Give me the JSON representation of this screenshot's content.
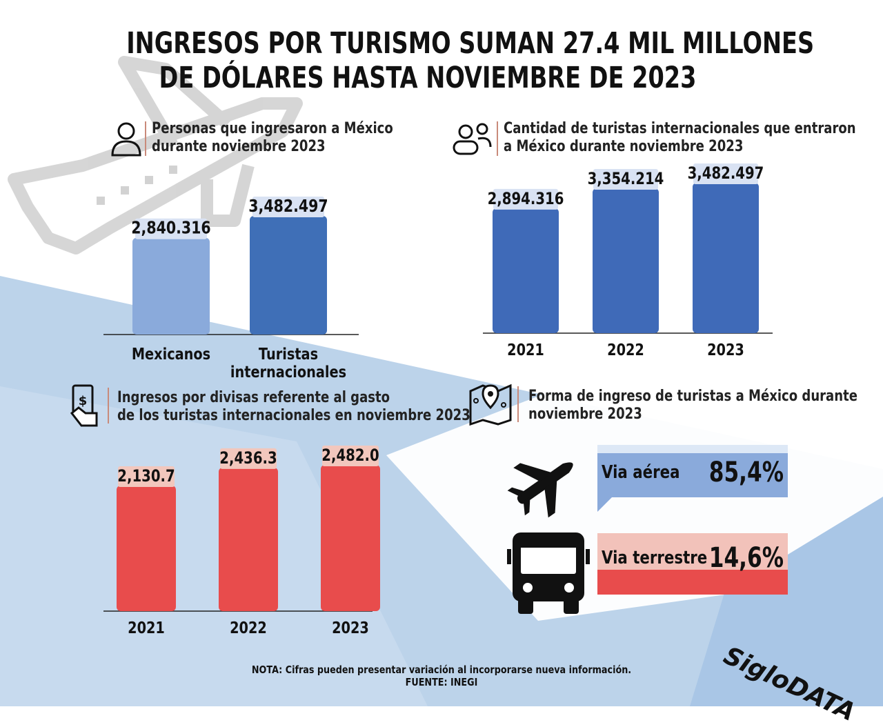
{
  "title": {
    "line1": "INGRESOS POR TURISMO SUMAN 27.4 MIL MILLONES",
    "line2": "DE DÓLARES HASTA NOVIEMBRE DE 2023"
  },
  "chart_data": [
    {
      "type": "bar",
      "title": "Personas que ingresaron a México durante noviembre 2023",
      "title_lines": [
        "Personas que ingresaron a México",
        "durante noviembre 2023"
      ],
      "categories": [
        "Mexicanos",
        "Turistas internacionales"
      ],
      "category_lines": [
        [
          "Mexicanos"
        ],
        [
          "Turistas",
          "internacionales"
        ]
      ],
      "values": [
        2840316,
        3482497
      ],
      "value_labels": [
        "2,840.316",
        "3,482.497"
      ],
      "colors": [
        "#8aaadb",
        "#3f6fb7"
      ]
    },
    {
      "type": "bar",
      "title": "Cantidad de turistas internacionales que entraron a México durante noviembre 2023",
      "title_lines": [
        "Cantidad de turistas internacionales que entraron",
        "a México durante noviembre 2023"
      ],
      "categories": [
        "2021",
        "2022",
        "2023"
      ],
      "values": [
        2894316,
        3354214,
        3482497
      ],
      "value_labels": [
        "2,894.316",
        "3,354.214",
        "3,482.497"
      ],
      "color": "#3f6ab8"
    },
    {
      "type": "bar",
      "title": "Ingresos por divisas referente al gasto de los turistas internacionales en noviembre 2023",
      "title_lines": [
        "Ingresos por divisas referente al gasto",
        "de los turistas internacionales en noviembre 2023"
      ],
      "categories": [
        "2021",
        "2022",
        "2023"
      ],
      "values": [
        2130.7,
        2436.3,
        2482.0
      ],
      "value_labels": [
        "2,130.7",
        "2,436.3",
        "2,482.0"
      ],
      "color": "#e84c4c"
    },
    {
      "type": "table",
      "title": "Forma de ingreso de turistas a México durante noviembre 2023",
      "title_lines": [
        "Forma de ingreso de turistas a México durante",
        "noviembre 2023"
      ],
      "rows": [
        {
          "label": "Via aérea",
          "value": 85.4,
          "value_label": "85,4%",
          "color": "#8aaadb",
          "icon": "airplane-icon"
        },
        {
          "label": "Via terrestre",
          "value": 14.6,
          "value_label": "14,6%",
          "color": "#e84c4c",
          "icon": "bus-icon"
        }
      ]
    }
  ],
  "icons": [
    "person-icon",
    "users-icon",
    "money-hand-icon",
    "map-pin-icon",
    "airplane-icon",
    "bus-icon"
  ],
  "note": "NOTA:  Cifras pueden presentar variación al incorporarse nueva información.",
  "source": "FUENTE: INEGI",
  "brand": "SigloDATA"
}
